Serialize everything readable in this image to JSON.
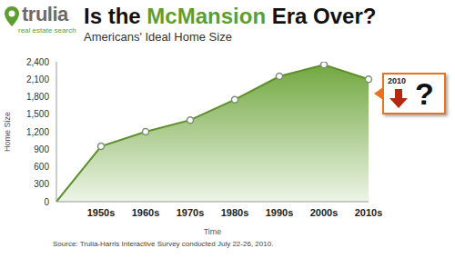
{
  "chart_data": {
    "type": "area",
    "title": "Is the McMansion Era Over?",
    "title_highlight": "McMansion",
    "subtitle": "Americans' Ideal Home Size",
    "x_label": "Time",
    "y_label": "Home Size",
    "categories": [
      null,
      "1950s",
      "1960s",
      "1970s",
      "1980s",
      "1990s",
      "2000s",
      "2010s"
    ],
    "values": [
      0,
      950,
      1200,
      1400,
      1750,
      2150,
      2350,
      2100
    ],
    "color": "#6aa336",
    "marker": "circle",
    "ylim": [
      0,
      2400
    ],
    "yticks": [
      0,
      300,
      600,
      900,
      {
        "value": 1200,
        "label": "1,200"
      },
      {
        "value": 1500,
        "label": "1,500"
      },
      {
        "value": 1800,
        "label": "1,800"
      },
      {
        "value": 2100,
        "label": "2,100"
      },
      {
        "value": 2400,
        "label": "2,400"
      }
    ],
    "grid": false,
    "annotation": {
      "label": "2010",
      "mark": "?"
    },
    "source": "Source: Trulia-Harris Interactive Survey conducted July 22-26, 2010.",
    "logo": {
      "name": "trulia",
      "tagline": "real estate search"
    }
  }
}
